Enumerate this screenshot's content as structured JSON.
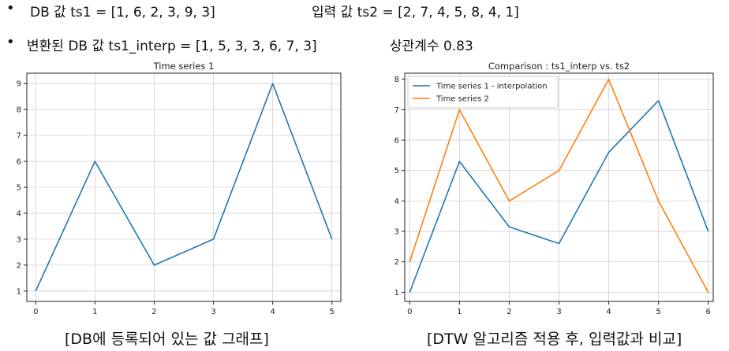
{
  "header": {
    "line1_bullet": "•",
    "line1_left": "DB 값 ts1 = [1, 6, 2, 3, 9, 3]",
    "line1_right": "입력 값 ts2 = [2, 7, 4, 5, 8, 4, 1]",
    "line2_bullet": "•",
    "line2_left": "변환된 DB 값 ts1_interp = [1, 5, 3, 3, 6, 7, 3]",
    "line2_right": "상관계수 0.83"
  },
  "captions": {
    "left": "[DB에 등록되어 있는 값 그래프]",
    "right": "[DTW 알고리즘 적용 후, 입력값과 비교]"
  },
  "colors": {
    "blue": "#1f77b4",
    "orange": "#ff7f0e"
  },
  "chart_data": [
    {
      "type": "line",
      "title": "Time series 1",
      "xlabel": "",
      "ylabel": "",
      "x": [
        0,
        1,
        2,
        3,
        4,
        5
      ],
      "xlim": [
        -0.15,
        5.15
      ],
      "ylim": [
        0.6,
        9.4
      ],
      "xticks": [
        0,
        1,
        2,
        3,
        4,
        5
      ],
      "yticks": [
        1,
        2,
        3,
        4,
        5,
        6,
        7,
        8,
        9
      ],
      "grid": true,
      "series": [
        {
          "values": [
            1,
            6,
            2,
            3,
            9,
            3
          ],
          "color": "#1f77b4"
        }
      ]
    },
    {
      "type": "line",
      "title": "Comparison : ts1_interp vs. ts2",
      "xlabel": "",
      "ylabel": "",
      "x": [
        0,
        1,
        2,
        3,
        4,
        5,
        6
      ],
      "xlim": [
        -0.1,
        6.1
      ],
      "ylim": [
        0.7,
        8.2
      ],
      "xticks": [
        0,
        1,
        2,
        3,
        4,
        5,
        6
      ],
      "yticks": [
        1,
        2,
        3,
        4,
        5,
        6,
        7,
        8
      ],
      "grid": true,
      "legend": "top-left",
      "series": [
        {
          "name": "Time series 1 - interpolation",
          "values": [
            1,
            5.3,
            3.15,
            2.6,
            5.6,
            7.3,
            3
          ],
          "color": "#1f77b4"
        },
        {
          "name": "Time series 2",
          "values": [
            2,
            7,
            4,
            5,
            8,
            4,
            1
          ],
          "color": "#ff7f0e"
        }
      ]
    }
  ]
}
